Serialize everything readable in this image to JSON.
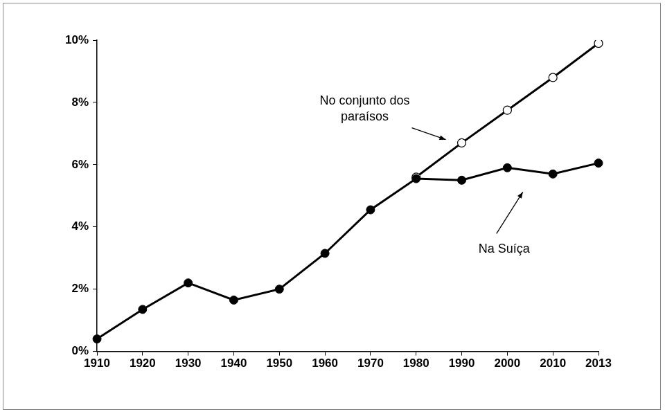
{
  "chart_data": {
    "type": "line",
    "categories": [
      "1910",
      "1920",
      "1930",
      "1940",
      "1950",
      "1960",
      "1970",
      "1980",
      "1990",
      "2000",
      "2010",
      "2013"
    ],
    "series": [
      {
        "name": "Na Suíça",
        "color": "#000000",
        "marker": "filled_circle",
        "values": [
          0.4,
          1.35,
          2.2,
          1.65,
          2.0,
          3.15,
          4.55,
          5.55,
          5.5,
          5.9,
          5.7,
          6.05
        ]
      },
      {
        "name": "No conjunto dos paraísos",
        "color": "#000000",
        "marker": "open_circle",
        "values": [
          null,
          null,
          null,
          null,
          null,
          null,
          null,
          5.6,
          6.7,
          7.75,
          8.8,
          9.9
        ]
      }
    ],
    "ylim": [
      0,
      10
    ],
    "yticks": [
      {
        "value": 0,
        "label": "0%"
      },
      {
        "value": 2,
        "label": "2%"
      },
      {
        "value": 4,
        "label": "4%"
      },
      {
        "value": 6,
        "label": "6%"
      },
      {
        "value": 8,
        "label": "8%"
      },
      {
        "value": 10,
        "label": "10%"
      }
    ],
    "grid": false
  }
}
